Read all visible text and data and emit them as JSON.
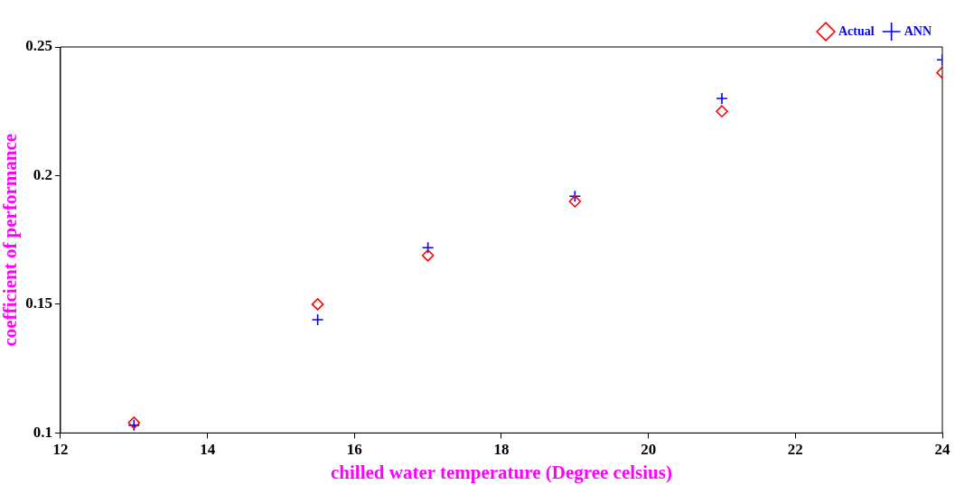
{
  "chart_data": {
    "type": "scatter",
    "xlabel": "chilled water temperature (Degree celsius)",
    "ylabel": "coefficient of performance",
    "x": [
      13,
      15.5,
      17,
      19,
      21,
      24
    ],
    "series": [
      {
        "name": "Actual",
        "color": "#ff0000",
        "marker": "diamond",
        "values": [
          0.104,
          0.15,
          0.169,
          0.19,
          0.225,
          0.24
        ]
      },
      {
        "name": "ANN",
        "color": "#0000ff",
        "marker": "cross",
        "values": [
          0.103,
          0.144,
          0.172,
          0.192,
          0.23,
          0.245
        ]
      }
    ],
    "xlim": [
      12,
      24
    ],
    "xticks": [
      12,
      14,
      16,
      18,
      20,
      22,
      24
    ],
    "ylim": [
      0.1,
      0.25
    ],
    "yticks": [
      0.1,
      0.15,
      0.2,
      0.25
    ],
    "legend": "top right",
    "grid": false
  }
}
